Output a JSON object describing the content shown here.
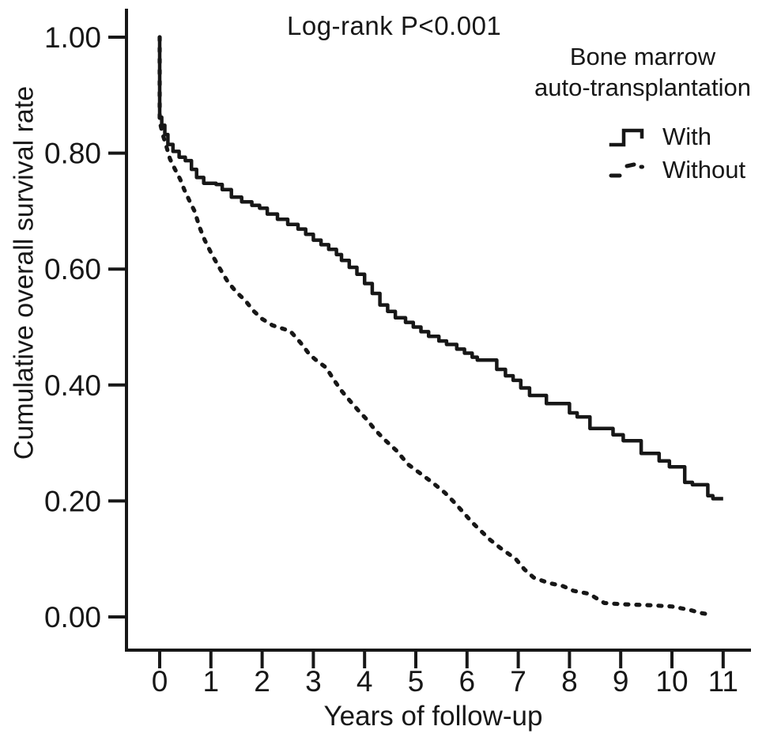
{
  "style": {
    "ink": "#171717",
    "background": "#ffffff"
  },
  "chart_data": {
    "type": "line",
    "subtype": "kaplan-meier-step-curves",
    "annotation": "Log-rank P<0.001",
    "xlabel": "Years of follow-up",
    "ylabel": "Cumulative overall survival rate",
    "xlim": [
      0,
      11
    ],
    "ylim": [
      0.0,
      1.0
    ],
    "grid": false,
    "legend_position": "top-right",
    "xticks": [
      {
        "label": "0",
        "value": 0
      },
      {
        "label": "1",
        "value": 1
      },
      {
        "label": "2",
        "value": 2
      },
      {
        "label": "3",
        "value": 3
      },
      {
        "label": "4",
        "value": 4
      },
      {
        "label": "5",
        "value": 5
      },
      {
        "label": "6",
        "value": 6
      },
      {
        "label": "7",
        "value": 7
      },
      {
        "label": "8",
        "value": 8
      },
      {
        "label": "9",
        "value": 9
      },
      {
        "label": "10",
        "value": 10
      },
      {
        "label": "11",
        "value": 11
      }
    ],
    "yticks": [
      {
        "label": "1.00",
        "value": 1.0
      },
      {
        "label": "0.80",
        "value": 0.8
      },
      {
        "label": "0.60",
        "value": 0.6
      },
      {
        "label": "0.40",
        "value": 0.4
      },
      {
        "label": "0.20",
        "value": 0.2
      },
      {
        "label": "0.00",
        "value": 0.0
      }
    ],
    "legend": {
      "title_line1": "Bone marrow",
      "title_line2": "auto-transplantation",
      "items": [
        {
          "label": "With",
          "line_style": "solid-step"
        },
        {
          "label": "Without",
          "line_style": "dashed"
        }
      ]
    },
    "series": [
      {
        "name": "With",
        "line_style": "solid-step",
        "points": [
          [
            0,
            1.0
          ],
          [
            0,
            0.862
          ],
          [
            0.04,
            0.848
          ],
          [
            0.1,
            0.832
          ],
          [
            0.16,
            0.815
          ],
          [
            0.26,
            0.803
          ],
          [
            0.38,
            0.793
          ],
          [
            0.5,
            0.787
          ],
          [
            0.62,
            0.772
          ],
          [
            0.72,
            0.758
          ],
          [
            0.86,
            0.748
          ],
          [
            1.1,
            0.746
          ],
          [
            1.22,
            0.737
          ],
          [
            1.4,
            0.724
          ],
          [
            1.6,
            0.716
          ],
          [
            1.8,
            0.71
          ],
          [
            1.95,
            0.705
          ],
          [
            2.1,
            0.695
          ],
          [
            2.3,
            0.686
          ],
          [
            2.5,
            0.677
          ],
          [
            2.7,
            0.669
          ],
          [
            2.85,
            0.66
          ],
          [
            3.0,
            0.65
          ],
          [
            3.15,
            0.642
          ],
          [
            3.3,
            0.634
          ],
          [
            3.45,
            0.625
          ],
          [
            3.55,
            0.615
          ],
          [
            3.7,
            0.603
          ],
          [
            3.85,
            0.591
          ],
          [
            4.0,
            0.575
          ],
          [
            4.15,
            0.558
          ],
          [
            4.3,
            0.538
          ],
          [
            4.45,
            0.527
          ],
          [
            4.6,
            0.516
          ],
          [
            4.8,
            0.508
          ],
          [
            4.95,
            0.5
          ],
          [
            5.1,
            0.492
          ],
          [
            5.25,
            0.484
          ],
          [
            5.45,
            0.476
          ],
          [
            5.6,
            0.47
          ],
          [
            5.8,
            0.462
          ],
          [
            5.95,
            0.455
          ],
          [
            6.1,
            0.448
          ],
          [
            6.2,
            0.443
          ],
          [
            6.58,
            0.427
          ],
          [
            6.75,
            0.416
          ],
          [
            6.9,
            0.408
          ],
          [
            7.05,
            0.395
          ],
          [
            7.22,
            0.382
          ],
          [
            7.55,
            0.368
          ],
          [
            8.0,
            0.352
          ],
          [
            8.15,
            0.345
          ],
          [
            8.4,
            0.325
          ],
          [
            8.85,
            0.314
          ],
          [
            9.05,
            0.304
          ],
          [
            9.4,
            0.282
          ],
          [
            9.75,
            0.269
          ],
          [
            9.95,
            0.259
          ],
          [
            10.25,
            0.232
          ],
          [
            10.4,
            0.228
          ],
          [
            10.7,
            0.209
          ],
          [
            10.8,
            0.204
          ],
          [
            11.0,
            0.204
          ]
        ]
      },
      {
        "name": "Without",
        "line_style": "dashed",
        "points": [
          [
            0,
            1.0
          ],
          [
            0,
            0.855
          ],
          [
            0.06,
            0.832
          ],
          [
            0.13,
            0.812
          ],
          [
            0.2,
            0.79
          ],
          [
            0.3,
            0.772
          ],
          [
            0.4,
            0.755
          ],
          [
            0.48,
            0.737
          ],
          [
            0.58,
            0.718
          ],
          [
            0.68,
            0.7
          ],
          [
            0.78,
            0.672
          ],
          [
            0.88,
            0.65
          ],
          [
            1.02,
            0.625
          ],
          [
            1.18,
            0.6
          ],
          [
            1.33,
            0.578
          ],
          [
            1.5,
            0.56
          ],
          [
            1.67,
            0.546
          ],
          [
            1.83,
            0.528
          ],
          [
            2.0,
            0.514
          ],
          [
            2.2,
            0.503
          ],
          [
            2.55,
            0.493
          ],
          [
            2.75,
            0.473
          ],
          [
            2.93,
            0.452
          ],
          [
            3.08,
            0.441
          ],
          [
            3.25,
            0.43
          ],
          [
            3.4,
            0.409
          ],
          [
            3.55,
            0.39
          ],
          [
            3.72,
            0.372
          ],
          [
            3.88,
            0.356
          ],
          [
            4.05,
            0.34
          ],
          [
            4.2,
            0.323
          ],
          [
            4.4,
            0.305
          ],
          [
            4.62,
            0.287
          ],
          [
            4.85,
            0.263
          ],
          [
            5.08,
            0.248
          ],
          [
            5.35,
            0.23
          ],
          [
            5.57,
            0.214
          ],
          [
            5.78,
            0.195
          ],
          [
            5.92,
            0.181
          ],
          [
            6.1,
            0.163
          ],
          [
            6.25,
            0.15
          ],
          [
            6.45,
            0.133
          ],
          [
            6.65,
            0.119
          ],
          [
            6.95,
            0.1
          ],
          [
            7.12,
            0.082
          ],
          [
            7.3,
            0.068
          ],
          [
            7.58,
            0.059
          ],
          [
            7.88,
            0.053
          ],
          [
            8.08,
            0.045
          ],
          [
            8.38,
            0.04
          ],
          [
            8.68,
            0.024
          ],
          [
            9.0,
            0.022
          ],
          [
            9.6,
            0.02
          ],
          [
            10.0,
            0.018
          ],
          [
            10.35,
            0.012
          ],
          [
            10.55,
            0.007
          ],
          [
            10.75,
            0.004
          ]
        ]
      }
    ]
  }
}
